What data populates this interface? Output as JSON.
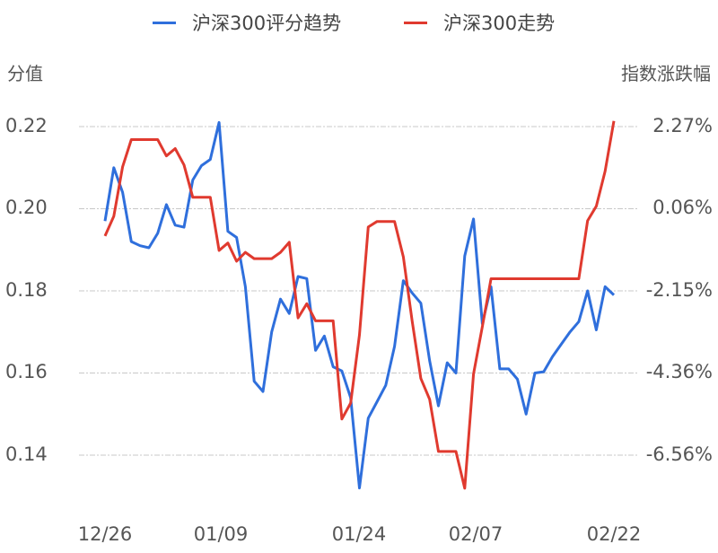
{
  "legend": {
    "items": [
      {
        "label": "沪深300评分趋势",
        "color": "#2f6fdc"
      },
      {
        "label": "沪深300走势",
        "color": "#e03a2f"
      }
    ]
  },
  "axes": {
    "left_title": "分值",
    "right_title": "指数涨跌幅",
    "left_ticks": [
      "0.22",
      "0.20",
      "0.18",
      "0.16",
      "0.14"
    ],
    "right_ticks": [
      "2.27%",
      "0.06%",
      "-2.15%",
      "-4.36%",
      "-6.56%"
    ],
    "x_ticks": [
      "12/26",
      "01/09",
      "01/24",
      "02/07",
      "02/22"
    ]
  },
  "chart_data": {
    "type": "line",
    "title": "",
    "xlabel": "",
    "ylabel": "分值",
    "y2label": "指数涨跌幅",
    "ylim": [
      0.13,
      0.225
    ],
    "y2lim": [
      -7.6,
      2.5
    ],
    "grid": true,
    "legend_position": "top",
    "x_tick_labels": [
      "12/26",
      "01/09",
      "01/24",
      "02/07",
      "02/22"
    ],
    "series": [
      {
        "name": "沪深300评分趋势",
        "axis": "left",
        "color": "#2f6fdc",
        "values": [
          0.197,
          0.21,
          0.204,
          0.192,
          0.191,
          0.1905,
          0.194,
          0.201,
          0.196,
          0.1955,
          0.207,
          0.2105,
          0.212,
          0.221,
          0.1945,
          0.193,
          0.181,
          0.158,
          0.1555,
          0.17,
          0.178,
          0.1745,
          0.1835,
          0.183,
          0.1655,
          0.169,
          0.1615,
          0.1605,
          0.154,
          0.132,
          0.149,
          0.153,
          0.157,
          0.1665,
          0.1825,
          0.1795,
          0.177,
          0.163,
          0.152,
          0.1625,
          0.16,
          0.1885,
          0.1975,
          0.172,
          0.181,
          0.161,
          0.161,
          0.1585,
          0.15,
          0.16,
          0.1603,
          0.164,
          0.167,
          0.17,
          0.1725,
          0.18,
          0.1705,
          0.181,
          0.179
        ]
      },
      {
        "name": "沪深300走势",
        "axis": "right",
        "color": "#e03a2f",
        "values": [
          -0.67,
          -0.14,
          1.19,
          1.92,
          1.92,
          1.92,
          1.92,
          1.48,
          1.68,
          1.24,
          0.37,
          0.37,
          0.37,
          -1.06,
          -0.86,
          -1.35,
          -1.11,
          -1.28,
          -1.28,
          -1.28,
          -1.11,
          -0.84,
          -2.87,
          -2.49,
          -2.95,
          -2.95,
          -2.95,
          -5.59,
          -5.16,
          -3.33,
          -0.43,
          -0.28,
          -0.28,
          -0.28,
          -1.23,
          -2.95,
          -4.5,
          -5.06,
          -6.46,
          -6.46,
          -6.46,
          -7.45,
          -4.38,
          -3.11,
          -1.82,
          -1.82,
          -1.82,
          -1.82,
          -1.82,
          -1.82,
          -1.82,
          -1.82,
          -1.82,
          -1.82,
          -1.82,
          -0.26,
          0.13,
          1.07,
          2.42
        ]
      }
    ]
  }
}
